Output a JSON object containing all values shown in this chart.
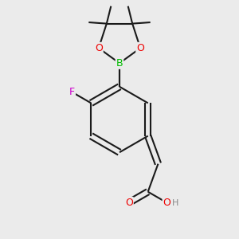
{
  "background_color": "#ebebeb",
  "bond_color": "#1a1a1a",
  "bond_width": 1.5,
  "atom_colors": {
    "B": "#00bb00",
    "O": "#ee0000",
    "F": "#cc00cc",
    "C": "#1a1a1a",
    "H": "#888888"
  },
  "figsize": [
    3.0,
    3.0
  ],
  "dpi": 100,
  "xlim": [
    -1.1,
    1.1
  ],
  "ylim": [
    -1.5,
    1.5
  ]
}
